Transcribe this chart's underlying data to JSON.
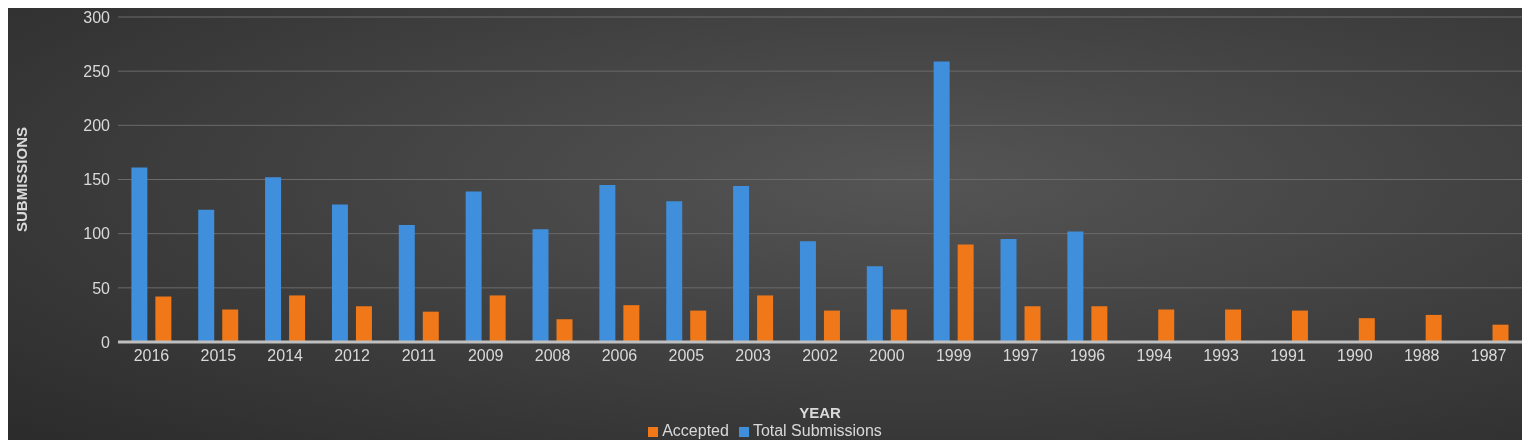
{
  "chart_data": {
    "type": "bar",
    "xlabel": "YEAR",
    "ylabel": "SUBMISSIONS",
    "categories": [
      "2016",
      "2015",
      "2014",
      "2012",
      "2011",
      "2009",
      "2008",
      "2006",
      "2005",
      "2003",
      "2002",
      "2000",
      "1999",
      "1997",
      "1996",
      "1994",
      "1993",
      "1991",
      "1990",
      "1988",
      "1987"
    ],
    "series": [
      {
        "name": "Total Submissions",
        "color": "#3f8fdc",
        "values": [
          161,
          122,
          152,
          127,
          108,
          139,
          104,
          145,
          130,
          144,
          93,
          70,
          259,
          95,
          102,
          null,
          null,
          null,
          null,
          null,
          null
        ]
      },
      {
        "name": "Accepted",
        "color": "#f07818",
        "values": [
          42,
          30,
          43,
          33,
          28,
          43,
          21,
          34,
          29,
          43,
          29,
          30,
          90,
          33,
          33,
          30,
          30,
          29,
          22,
          25,
          16
        ]
      }
    ],
    "ylim": [
      0,
      300
    ],
    "yticks": [
      0,
      50,
      100,
      150,
      200,
      250,
      300
    ],
    "grid": "y",
    "legend": "bottom"
  }
}
